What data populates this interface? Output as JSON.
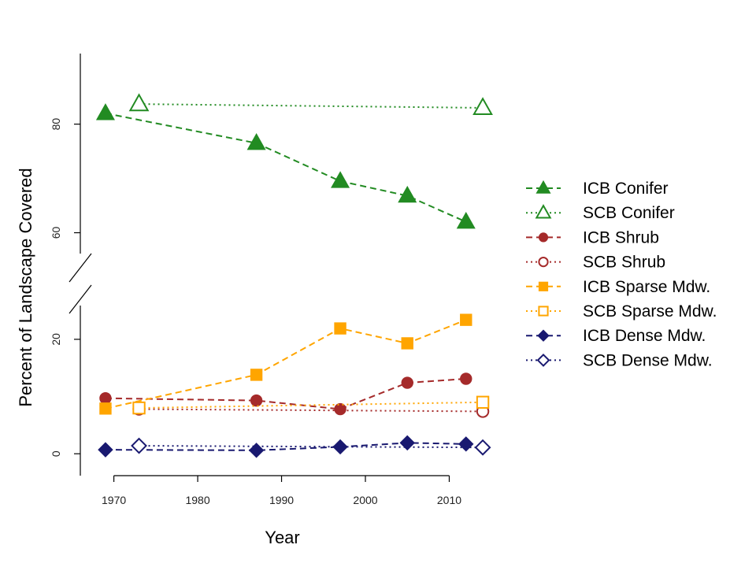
{
  "chart_data": {
    "type": "line",
    "title": "",
    "xlabel": "Year",
    "ylabel": "Percent of Landscape Covered",
    "xlim": [
      1966,
      2017
    ],
    "x_ticks": [
      1970,
      1980,
      1990,
      2000,
      2010
    ],
    "y_axis_break": true,
    "ylim_lower": [
      -3,
      27
    ],
    "ylim_upper": [
      55,
      93
    ],
    "y_ticks_lower": [
      0,
      20
    ],
    "y_ticks_upper": [
      60,
      80
    ],
    "grid": false,
    "legend_position": "right",
    "series": [
      {
        "name": "ICB Conifer",
        "color": "#228B22",
        "dash": "dashed",
        "marker": "triangle-filled",
        "x": [
          1969,
          1987,
          1997,
          2005,
          2012
        ],
        "y": [
          82,
          76.5,
          69.5,
          66.8,
          62
        ]
      },
      {
        "name": "SCB Conifer",
        "color": "#228B22",
        "dash": "dotted",
        "marker": "triangle-open",
        "x": [
          1973,
          2014
        ],
        "y": [
          83.7,
          83
        ]
      },
      {
        "name": "ICB Shrub",
        "color": "#A52A2A",
        "dash": "dashed",
        "marker": "circle-filled",
        "x": [
          1969,
          1987,
          1997,
          2005,
          2012
        ],
        "y": [
          9.7,
          9.3,
          7.8,
          12.4,
          13.1
        ]
      },
      {
        "name": "SCB Shrub",
        "color": "#A52A2A",
        "dash": "dotted",
        "marker": "circle-open",
        "x": [
          1973,
          2014
        ],
        "y": [
          7.8,
          7.4
        ]
      },
      {
        "name": "ICB Sparse Mdw.",
        "color": "#FFA500",
        "dash": "dashed",
        "marker": "square-filled",
        "x": [
          1969,
          1987,
          1997,
          2005,
          2012
        ],
        "y": [
          7.9,
          13.8,
          21.9,
          19.3,
          23.4
        ]
      },
      {
        "name": "SCB Sparse Mdw.",
        "color": "#FFA500",
        "dash": "dotted",
        "marker": "square-open",
        "x": [
          1973,
          2014
        ],
        "y": [
          8.0,
          9.0
        ]
      },
      {
        "name": "ICB Dense Mdw.",
        "color": "#191970",
        "dash": "dashed",
        "marker": "diamond-filled",
        "x": [
          1969,
          1987,
          1997,
          2005,
          2012
        ],
        "y": [
          0.7,
          0.6,
          1.2,
          1.9,
          1.7
        ]
      },
      {
        "name": "SCB Dense Mdw.",
        "color": "#191970",
        "dash": "dotted",
        "marker": "diamond-open",
        "x": [
          1973,
          2014
        ],
        "y": [
          1.4,
          1.1
        ]
      }
    ]
  }
}
